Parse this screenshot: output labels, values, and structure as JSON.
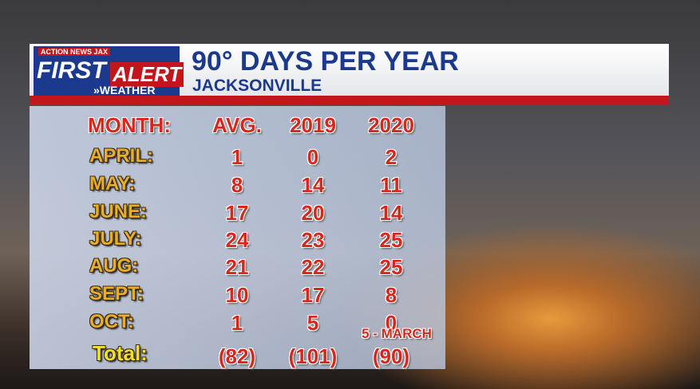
{
  "logo": {
    "station": "ACTION NEWS JAX",
    "line1": "FIRST",
    "line2": "ALERT",
    "line3": "»WEATHER"
  },
  "header": {
    "title": "90° DAYS PER YEAR",
    "subtitle": "JACKSONVILLE"
  },
  "table": {
    "columns": [
      "MONTH:",
      "AVG.",
      "2019",
      "2020"
    ],
    "rows": [
      [
        "APRIL:",
        "1",
        "0",
        "2"
      ],
      [
        "MAY:",
        "8",
        "14",
        "11"
      ],
      [
        "JUNE:",
        "17",
        "20",
        "14"
      ],
      [
        "JULY:",
        "24",
        "23",
        "25"
      ],
      [
        "AUG:",
        "21",
        "22",
        "25"
      ],
      [
        "SEPT:",
        "10",
        "17",
        "8"
      ],
      [
        "OCT:",
        "1",
        "5",
        "0"
      ]
    ],
    "total": {
      "label": "Total:",
      "values": [
        "(82)",
        "(101)",
        "(90)"
      ],
      "note": "5 - MARCH"
    }
  }
}
